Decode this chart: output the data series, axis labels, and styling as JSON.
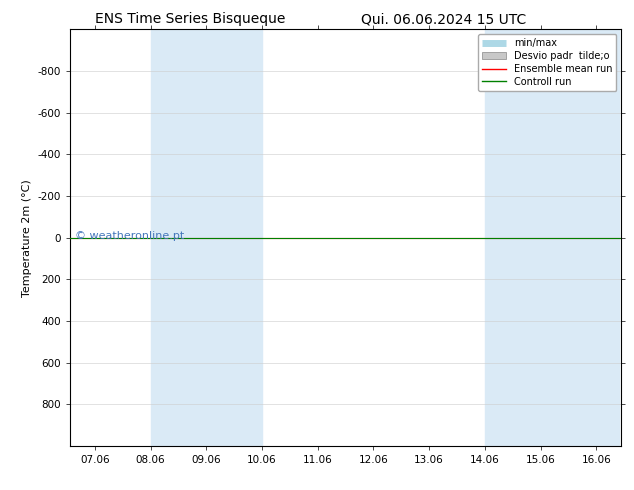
{
  "title_left": "ENS Time Series Bisqueque",
  "title_right": "Qui. 06.06.2024 15 UTC",
  "ylabel": "Temperature 2m (°C)",
  "ylim_bottom": 1000,
  "ylim_top": -1000,
  "yticks": [
    -800,
    -600,
    -400,
    -200,
    0,
    200,
    400,
    600,
    800
  ],
  "xtick_labels": [
    "07.06",
    "08.06",
    "09.06",
    "10.06",
    "11.06",
    "12.06",
    "13.06",
    "14.06",
    "15.06",
    "16.06"
  ],
  "xtick_positions": [
    0,
    1,
    2,
    3,
    4,
    5,
    6,
    7,
    8,
    9
  ],
  "shaded_bands": [
    [
      1,
      2
    ],
    [
      2,
      3
    ],
    [
      7,
      8
    ],
    [
      8,
      9
    ],
    [
      9,
      9.4
    ]
  ],
  "shaded_color": "#daeaf6",
  "control_run_y": 0,
  "ensemble_mean_y": 0,
  "control_run_color": "#008000",
  "ensemble_mean_color": "#ff0000",
  "minmax_color": "#add8e6",
  "stddev_color": "#c8c8c8",
  "watermark": "© weatheronline.pt",
  "watermark_color": "#4477bb",
  "watermark_fontsize": 8,
  "legend_labels": [
    "min/max",
    "Desvio padr  tilde;o",
    "Ensemble mean run",
    "Controll run"
  ],
  "title_fontsize": 10,
  "ylabel_fontsize": 8,
  "tick_fontsize": 7.5,
  "background_color": "#ffffff",
  "plot_bg_color": "#ffffff",
  "xlim_left": -0.45,
  "xlim_right": 9.45
}
